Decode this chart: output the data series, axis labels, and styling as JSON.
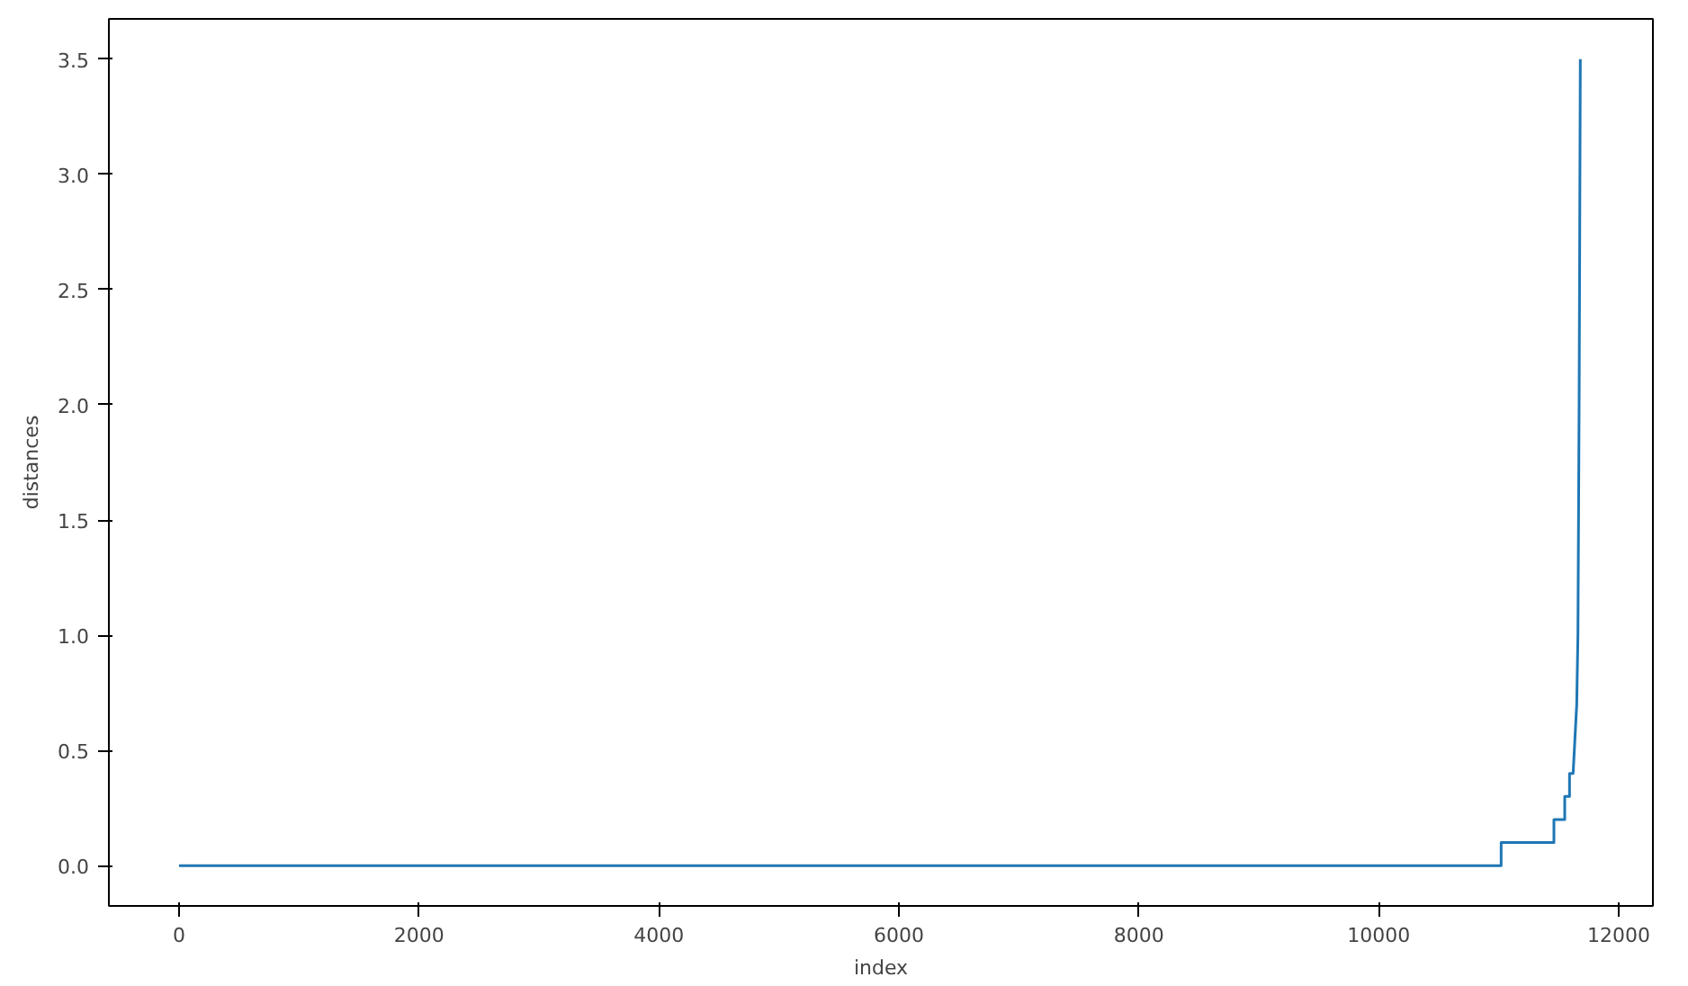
{
  "chart_data": {
    "type": "line",
    "xlabel": "index",
    "ylabel": "distances",
    "xlim": [
      -585,
      12285
    ],
    "ylim": [
      -0.175,
      3.675
    ],
    "xticks": [
      0,
      2000,
      4000,
      6000,
      8000,
      10000,
      12000
    ],
    "yticks": [
      {
        "value": 0,
        "label": "0.0"
      },
      {
        "value": 0.5,
        "label": "0.5"
      },
      {
        "value": 1,
        "label": "1.0"
      },
      {
        "value": 1.5,
        "label": "1.5"
      },
      {
        "value": 2,
        "label": "2.0"
      },
      {
        "value": 2.5,
        "label": "2.5"
      },
      {
        "value": 3,
        "label": "3.0"
      },
      {
        "value": 3.5,
        "label": "3.5"
      }
    ],
    "grid": false,
    "series": [
      {
        "color": "#1f77b4",
        "x": [
          0,
          11020,
          11020,
          11460,
          11460,
          11550,
          11550,
          11590,
          11590,
          11620,
          11630,
          11650,
          11660,
          11670,
          11680
        ],
        "values": [
          0,
          0,
          0.1,
          0.1,
          0.2,
          0.2,
          0.3,
          0.3,
          0.4,
          0.4,
          0.5,
          0.7,
          1.0,
          2.0,
          3.5
        ]
      }
    ]
  }
}
